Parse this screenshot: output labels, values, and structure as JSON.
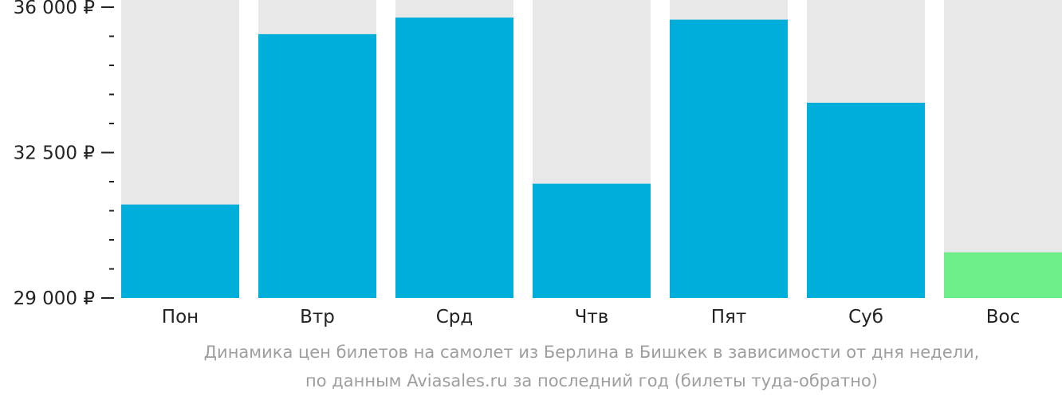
{
  "chart_data": {
    "type": "bar",
    "categories": [
      "Пон",
      "Втр",
      "Срд",
      "Чтв",
      "Пят",
      "Суб",
      "Вос"
    ],
    "values": [
      31250,
      35350,
      35750,
      31750,
      35700,
      33700,
      30100
    ],
    "ylim": [
      29000,
      36000
    ],
    "yticks": [
      {
        "value": 29000,
        "label": "29 000 ₽"
      },
      {
        "value": 32500,
        "label": "32 500 ₽"
      },
      {
        "value": 36000,
        "label": "36 000 ₽"
      }
    ],
    "minor_tick_step": 700,
    "highlight_index": 6,
    "colors": {
      "bar": "#00aedc",
      "highlight": "#6cee88",
      "track": "#e8e8e8",
      "axis": "#222222",
      "text": "#222222"
    },
    "caption_line1": "Динамика цен билетов на самолет из Берлина в Бишкек в зависимости от дня недели,",
    "caption_line2": "по данным Aviasales.ru за последний год (билеты туда-обратно)"
  }
}
